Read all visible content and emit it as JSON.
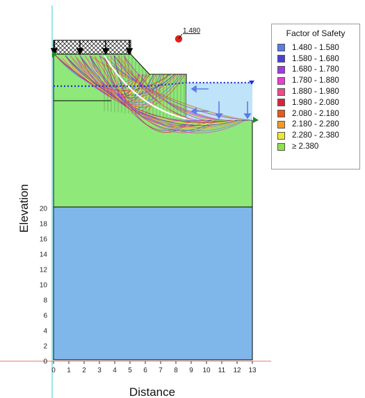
{
  "axes": {
    "x_label": "Distance",
    "y_label": "Elevation",
    "x_ticks": [
      "0",
      "1",
      "2",
      "3",
      "4",
      "5",
      "6",
      "7",
      "8",
      "9",
      "10",
      "11",
      "12",
      "13"
    ],
    "y_ticks": [
      "0",
      "2",
      "4",
      "6",
      "8",
      "10",
      "12",
      "14",
      "16",
      "18",
      "20"
    ]
  },
  "critical": {
    "label": "1.480",
    "color": "#e0221b"
  },
  "legend": {
    "title": "Factor of Safety",
    "items": [
      {
        "label": "1.480 - 1.580",
        "color": "#5b7be8"
      },
      {
        "label": "1.580 - 1.680",
        "color": "#4b3fd8"
      },
      {
        "label": "1.680 - 1.780",
        "color": "#9b3de0"
      },
      {
        "label": "1.780 - 1.880",
        "color": "#e83fd6"
      },
      {
        "label": "1.880 - 1.980",
        "color": "#ec4c8a"
      },
      {
        "label": "1.980 - 2.080",
        "color": "#d7263a"
      },
      {
        "label": "2.080 - 2.180",
        "color": "#e45a1d"
      },
      {
        "label": "2.180 - 2.280",
        "color": "#f09a2a"
      },
      {
        "label": "2.280 - 2.380",
        "color": "#e8e83a"
      },
      {
        "label": "≥ 2.380",
        "color": "#8fe04a"
      }
    ]
  },
  "colors": {
    "upper_soil": "#8fe87a",
    "lower_soil": "#7fb7ea",
    "ponded_water": "#bfe3f8",
    "water_table": "#1f2fd6",
    "grid_axis": "#5fd6d6",
    "ground_line": "#e87070"
  }
}
